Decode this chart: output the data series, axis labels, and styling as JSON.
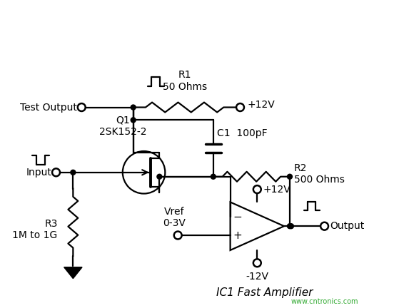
{
  "bg_color": "#ffffff",
  "line_color": "#000000",
  "title": "IC1 Fast Amplifier",
  "watermark": "www.cntronics.com",
  "labels": {
    "test_output": "Test Output",
    "input": "Input",
    "r1": "R1\n50 Ohms",
    "r2": "R2\n500 Ohms",
    "r3": "R3\n1M to 1G",
    "c1": "C1  100pF",
    "q1": "Q1\n2SK152-2",
    "vref": "Vref\n0-3V",
    "v12_top": "+12V",
    "v12_mid": "+12V",
    "v_neg": "-12V",
    "output": "Output"
  },
  "figsize": [
    5.73,
    4.32
  ],
  "dpi": 100
}
